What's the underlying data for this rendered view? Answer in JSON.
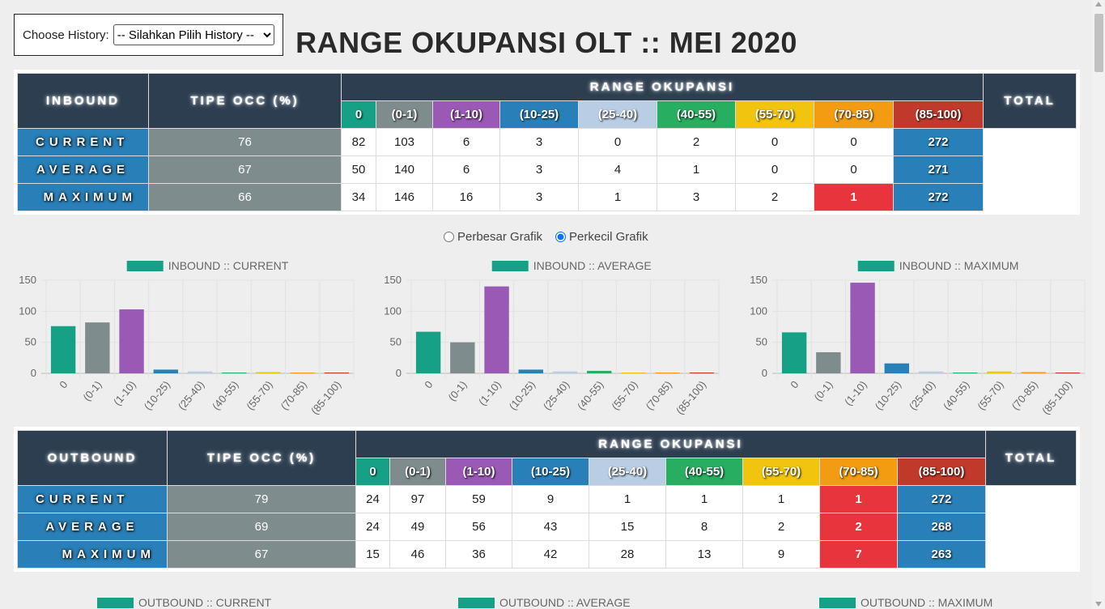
{
  "history": {
    "label": "Choose History:",
    "selected": "-- Silahkan Pilih History --"
  },
  "page_title": "RANGE OKUPANSI OLT :: MEI 2020",
  "ranges": [
    "0",
    "(0-1)",
    "(1-10)",
    "(10-25)",
    "(25-40)",
    "(40-55)",
    "(55-70)",
    "(70-85)",
    "(85-100)"
  ],
  "range_colors": [
    "#16a085",
    "#7f8c8d",
    "#9b59b6",
    "#2980b9",
    "#b9cde5",
    "#27ae60",
    "#f1c40f",
    "#f39c12",
    "#c0392b"
  ],
  "inbound": {
    "label": "INBOUND",
    "tipe_occ": "TIPE OCC (%)",
    "range_header": "RANGE OKUPANSI",
    "total_header": "TOTAL",
    "rows": [
      {
        "label": "CURRENT",
        "values": [
          "76",
          "82",
          "103",
          "6",
          "3",
          "0",
          "2",
          "0",
          "0"
        ],
        "total": "272"
      },
      {
        "label": "AVERAGE",
        "values": [
          "67",
          "50",
          "140",
          "6",
          "3",
          "4",
          "1",
          "0",
          "0"
        ],
        "total": "271"
      },
      {
        "label": "MAXIMUM",
        "values": [
          "66",
          "34",
          "146",
          "16",
          "3",
          "1",
          "3",
          "2",
          "1"
        ],
        "total": "272"
      }
    ]
  },
  "outbound": {
    "label": "OUTBOUND",
    "tipe_occ": "TIPE OCC (%)",
    "range_header": "RANGE OKUPANSI",
    "total_header": "TOTAL",
    "rows": [
      {
        "label": "CURRENT",
        "values": [
          "79",
          "24",
          "97",
          "59",
          "9",
          "1",
          "1",
          "1",
          "1"
        ],
        "total": "272"
      },
      {
        "label": "AVERAGE",
        "values": [
          "69",
          "24",
          "49",
          "56",
          "43",
          "15",
          "8",
          "2",
          "2"
        ],
        "total": "268"
      },
      {
        "label": "MAXIMUM",
        "values": [
          "67",
          "15",
          "46",
          "36",
          "42",
          "28",
          "13",
          "9",
          "7"
        ],
        "total": "263"
      }
    ]
  },
  "radio": {
    "enlarge": "Perbesar Grafik",
    "shrink": "Perkecil Grafik"
  },
  "chart_data": [
    {
      "type": "bar",
      "title": "INBOUND :: CURRENT",
      "categories": [
        "0",
        "(0-1)",
        "(1-10)",
        "(10-25)",
        "(25-40)",
        "(40-55)",
        "(55-70)",
        "(70-85)",
        "(85-100)"
      ],
      "values": [
        76,
        82,
        103,
        6,
        3,
        0,
        2,
        0,
        0
      ],
      "ylim": [
        0,
        150
      ],
      "yticks": [
        0,
        50,
        100,
        150
      ]
    },
    {
      "type": "bar",
      "title": "INBOUND :: AVERAGE",
      "categories": [
        "0",
        "(0-1)",
        "(1-10)",
        "(10-25)",
        "(25-40)",
        "(40-55)",
        "(55-70)",
        "(70-85)",
        "(85-100)"
      ],
      "values": [
        67,
        50,
        140,
        6,
        3,
        4,
        1,
        0,
        0
      ],
      "ylim": [
        0,
        150
      ],
      "yticks": [
        0,
        50,
        100,
        150
      ]
    },
    {
      "type": "bar",
      "title": "INBOUND :: MAXIMUM",
      "categories": [
        "0",
        "(0-1)",
        "(1-10)",
        "(10-25)",
        "(25-40)",
        "(40-55)",
        "(55-70)",
        "(70-85)",
        "(85-100)"
      ],
      "values": [
        66,
        34,
        146,
        16,
        3,
        1,
        3,
        2,
        1
      ],
      "ylim": [
        0,
        150
      ],
      "yticks": [
        0,
        50,
        100,
        150
      ]
    }
  ],
  "outbound_legends": [
    "OUTBOUND :: CURRENT",
    "OUTBOUND :: AVERAGE",
    "OUTBOUND :: MAXIMUM"
  ]
}
